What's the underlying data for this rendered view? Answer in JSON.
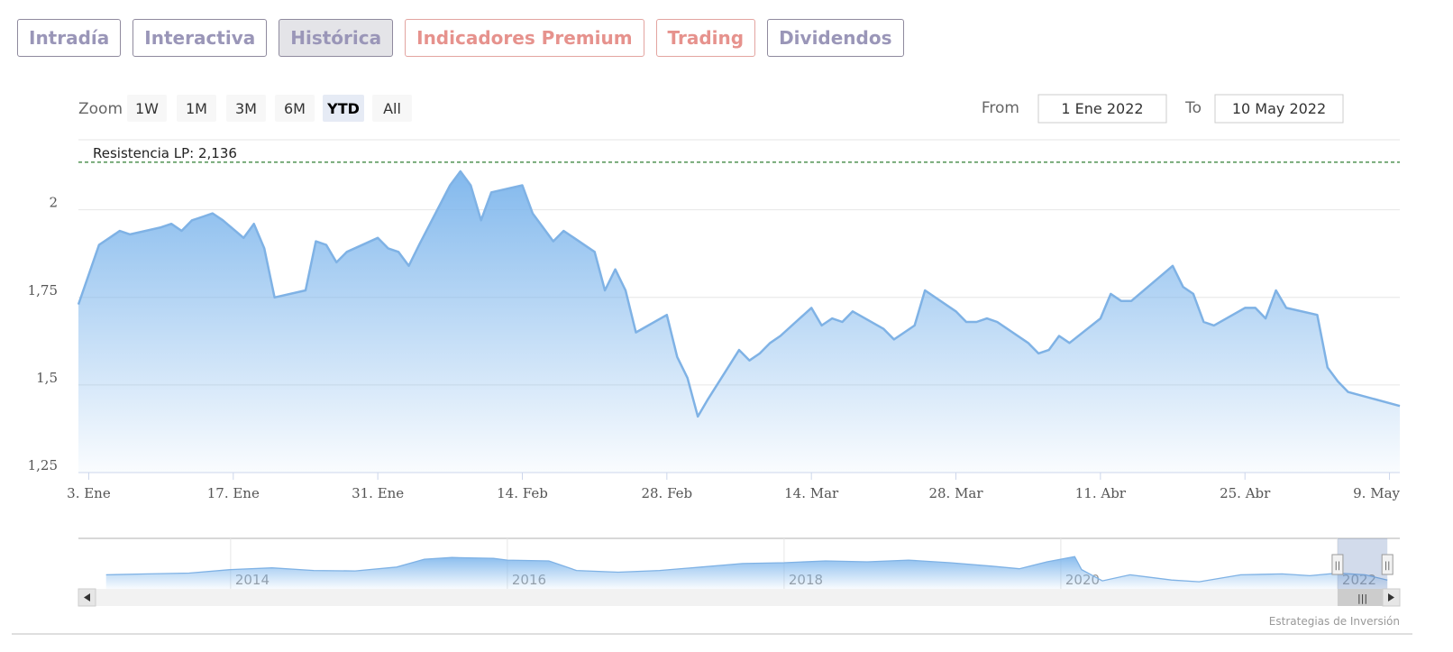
{
  "tabs": [
    {
      "label": "Intradía",
      "style": "normal",
      "active": false
    },
    {
      "label": "Interactiva",
      "style": "normal",
      "active": false
    },
    {
      "label": "Histórica",
      "style": "normal",
      "active": true
    },
    {
      "label": "Indicadores Premium",
      "style": "salmon",
      "active": false
    },
    {
      "label": "Trading",
      "style": "salmon",
      "active": false
    },
    {
      "label": "Dividendos",
      "style": "normal",
      "active": false
    }
  ],
  "range_selector": {
    "zoom_label": "Zoom",
    "buttons": [
      {
        "label": "1W",
        "active": false
      },
      {
        "label": "1M",
        "active": false
      },
      {
        "label": "3M",
        "active": false
      },
      {
        "label": "6M",
        "active": false
      },
      {
        "label": "YTD",
        "active": true
      },
      {
        "label": "All",
        "active": false
      }
    ],
    "from_label": "From",
    "from_value": "1 Ene 2022",
    "to_label": "To",
    "to_value": "10 May 2022"
  },
  "colors": {
    "series": "#7fb2e5",
    "fill_top": "#7cb5ec",
    "plot_line": "#2e7d32",
    "grid": "#e6e6e6"
  },
  "chart_data": {
    "type": "area",
    "ylim": [
      1.25,
      2.2
    ],
    "y_ticks": [
      1.25,
      1.5,
      1.75,
      2
    ],
    "y_tick_labels": [
      "1,25",
      "1,5",
      "1,75",
      "2"
    ],
    "x_tick_labels": [
      {
        "date": "2022-01-03",
        "label": "3. Ene"
      },
      {
        "date": "2022-01-17",
        "label": "17. Ene"
      },
      {
        "date": "2022-01-31",
        "label": "31. Ene"
      },
      {
        "date": "2022-02-14",
        "label": "14. Feb"
      },
      {
        "date": "2022-02-28",
        "label": "28. Feb"
      },
      {
        "date": "2022-03-14",
        "label": "14. Mar"
      },
      {
        "date": "2022-03-28",
        "label": "28. Mar"
      },
      {
        "date": "2022-04-11",
        "label": "11. Abr"
      },
      {
        "date": "2022-04-25",
        "label": "25. Abr"
      },
      {
        "date": "2022-05-09",
        "label": "9. May"
      }
    ],
    "x_range": [
      "2022-01-02",
      "2022-05-10"
    ],
    "plot_lines": [
      {
        "value": 2.136,
        "label": "Resistencia LP: 2,136"
      }
    ],
    "series": [
      {
        "points": [
          [
            "2022-01-02",
            1.73
          ],
          [
            "2022-01-04",
            1.9
          ],
          [
            "2022-01-05",
            1.92
          ],
          [
            "2022-01-06",
            1.94
          ],
          [
            "2022-01-07",
            1.93
          ],
          [
            "2022-01-10",
            1.95
          ],
          [
            "2022-01-11",
            1.96
          ],
          [
            "2022-01-12",
            1.94
          ],
          [
            "2022-01-13",
            1.97
          ],
          [
            "2022-01-14",
            1.98
          ],
          [
            "2022-01-15",
            1.99
          ],
          [
            "2022-01-16",
            1.97
          ],
          [
            "2022-01-18",
            1.92
          ],
          [
            "2022-01-19",
            1.96
          ],
          [
            "2022-01-20",
            1.89
          ],
          [
            "2022-01-21",
            1.75
          ],
          [
            "2022-01-24",
            1.77
          ],
          [
            "2022-01-25",
            1.91
          ],
          [
            "2022-01-26",
            1.9
          ],
          [
            "2022-01-27",
            1.85
          ],
          [
            "2022-01-28",
            1.88
          ],
          [
            "2022-01-31",
            1.92
          ],
          [
            "2022-02-01",
            1.89
          ],
          [
            "2022-02-02",
            1.88
          ],
          [
            "2022-02-03",
            1.84
          ],
          [
            "2022-02-04",
            1.9
          ],
          [
            "2022-02-07",
            2.07
          ],
          [
            "2022-02-08",
            2.11
          ],
          [
            "2022-02-09",
            2.07
          ],
          [
            "2022-02-10",
            1.97
          ],
          [
            "2022-02-11",
            2.05
          ],
          [
            "2022-02-14",
            2.07
          ],
          [
            "2022-02-15",
            1.99
          ],
          [
            "2022-02-16",
            1.95
          ],
          [
            "2022-02-17",
            1.91
          ],
          [
            "2022-02-18",
            1.94
          ],
          [
            "2022-02-21",
            1.88
          ],
          [
            "2022-02-22",
            1.77
          ],
          [
            "2022-02-23",
            1.83
          ],
          [
            "2022-02-24",
            1.77
          ],
          [
            "2022-02-25",
            1.65
          ],
          [
            "2022-02-28",
            1.7
          ],
          [
            "2022-03-01",
            1.58
          ],
          [
            "2022-03-02",
            1.52
          ],
          [
            "2022-03-03",
            1.41
          ],
          [
            "2022-03-04",
            1.46
          ],
          [
            "2022-03-07",
            1.6
          ],
          [
            "2022-03-08",
            1.57
          ],
          [
            "2022-03-09",
            1.59
          ],
          [
            "2022-03-10",
            1.62
          ],
          [
            "2022-03-11",
            1.64
          ],
          [
            "2022-03-14",
            1.72
          ],
          [
            "2022-03-15",
            1.67
          ],
          [
            "2022-03-16",
            1.69
          ],
          [
            "2022-03-17",
            1.68
          ],
          [
            "2022-03-18",
            1.71
          ],
          [
            "2022-03-21",
            1.66
          ],
          [
            "2022-03-22",
            1.63
          ],
          [
            "2022-03-23",
            1.65
          ],
          [
            "2022-03-24",
            1.67
          ],
          [
            "2022-03-25",
            1.77
          ],
          [
            "2022-03-28",
            1.71
          ],
          [
            "2022-03-29",
            1.68
          ],
          [
            "2022-03-30",
            1.68
          ],
          [
            "2022-03-31",
            1.69
          ],
          [
            "2022-04-01",
            1.68
          ],
          [
            "2022-04-04",
            1.62
          ],
          [
            "2022-04-05",
            1.59
          ],
          [
            "2022-04-06",
            1.6
          ],
          [
            "2022-04-07",
            1.64
          ],
          [
            "2022-04-08",
            1.62
          ],
          [
            "2022-04-11",
            1.69
          ],
          [
            "2022-04-12",
            1.76
          ],
          [
            "2022-04-13",
            1.74
          ],
          [
            "2022-04-14",
            1.74
          ],
          [
            "2022-04-18",
            1.84
          ],
          [
            "2022-04-19",
            1.78
          ],
          [
            "2022-04-20",
            1.76
          ],
          [
            "2022-04-21",
            1.68
          ],
          [
            "2022-04-22",
            1.67
          ],
          [
            "2022-04-25",
            1.72
          ],
          [
            "2022-04-26",
            1.72
          ],
          [
            "2022-04-27",
            1.69
          ],
          [
            "2022-04-28",
            1.77
          ],
          [
            "2022-04-29",
            1.72
          ],
          [
            "2022-05-02",
            1.7
          ],
          [
            "2022-05-03",
            1.55
          ],
          [
            "2022-05-04",
            1.51
          ],
          [
            "2022-05-05",
            1.48
          ],
          [
            "2022-05-10",
            1.44
          ]
        ]
      }
    ]
  },
  "navigator": {
    "labels": [
      "2014",
      "2016",
      "2018",
      "2020",
      "2022"
    ],
    "x_range": [
      2012.9,
      2022.45
    ],
    "selected_range": [
      2022.0,
      2022.36
    ],
    "series": [
      [
        2013.1,
        0.2
      ],
      [
        2013.4,
        0.22
      ],
      [
        2013.7,
        0.24
      ],
      [
        2014.0,
        0.32
      ],
      [
        2014.3,
        0.36
      ],
      [
        2014.6,
        0.3
      ],
      [
        2014.9,
        0.29
      ],
      [
        2015.2,
        0.38
      ],
      [
        2015.4,
        0.56
      ],
      [
        2015.6,
        0.6
      ],
      [
        2015.9,
        0.58
      ],
      [
        2016.0,
        0.54
      ],
      [
        2016.3,
        0.52
      ],
      [
        2016.5,
        0.3
      ],
      [
        2016.8,
        0.26
      ],
      [
        2017.1,
        0.3
      ],
      [
        2017.4,
        0.38
      ],
      [
        2017.7,
        0.46
      ],
      [
        2018.0,
        0.48
      ],
      [
        2018.3,
        0.52
      ],
      [
        2018.6,
        0.5
      ],
      [
        2018.9,
        0.54
      ],
      [
        2019.2,
        0.48
      ],
      [
        2019.5,
        0.4
      ],
      [
        2019.7,
        0.34
      ],
      [
        2019.9,
        0.5
      ],
      [
        2020.1,
        0.62
      ],
      [
        2020.15,
        0.32
      ],
      [
        2020.3,
        0.06
      ],
      [
        2020.5,
        0.2
      ],
      [
        2020.8,
        0.08
      ],
      [
        2021.0,
        0.04
      ],
      [
        2021.3,
        0.2
      ],
      [
        2021.6,
        0.22
      ],
      [
        2021.8,
        0.18
      ],
      [
        2022.0,
        0.24
      ],
      [
        2022.2,
        0.2
      ],
      [
        2022.36,
        0.08
      ]
    ],
    "handle_glyph": "||",
    "scroll_glyph": "|||"
  },
  "credits": "Estrategias de Inversión"
}
